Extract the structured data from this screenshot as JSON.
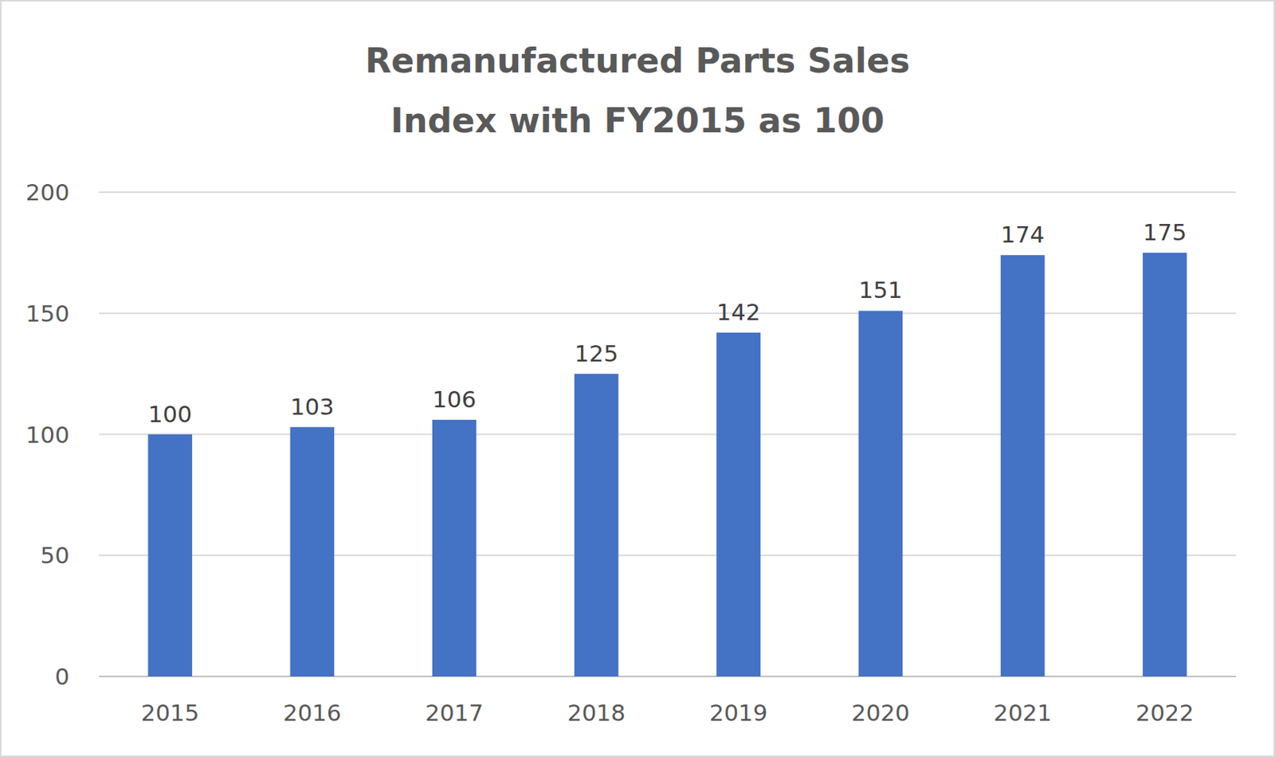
{
  "chart_data": {
    "type": "bar",
    "title": "Remanufactured Parts Sales",
    "subtitle": "Index with FY2015 as 100",
    "categories": [
      "2015",
      "2016",
      "2017",
      "2018",
      "2019",
      "2020",
      "2021",
      "2022"
    ],
    "values": [
      100,
      103,
      106,
      125,
      142,
      151,
      174,
      175
    ],
    "color": "#4472c4",
    "ylim": [
      0,
      200
    ],
    "yticks": [
      0,
      50,
      100,
      150,
      200
    ],
    "grid": true,
    "data_labels": true
  }
}
